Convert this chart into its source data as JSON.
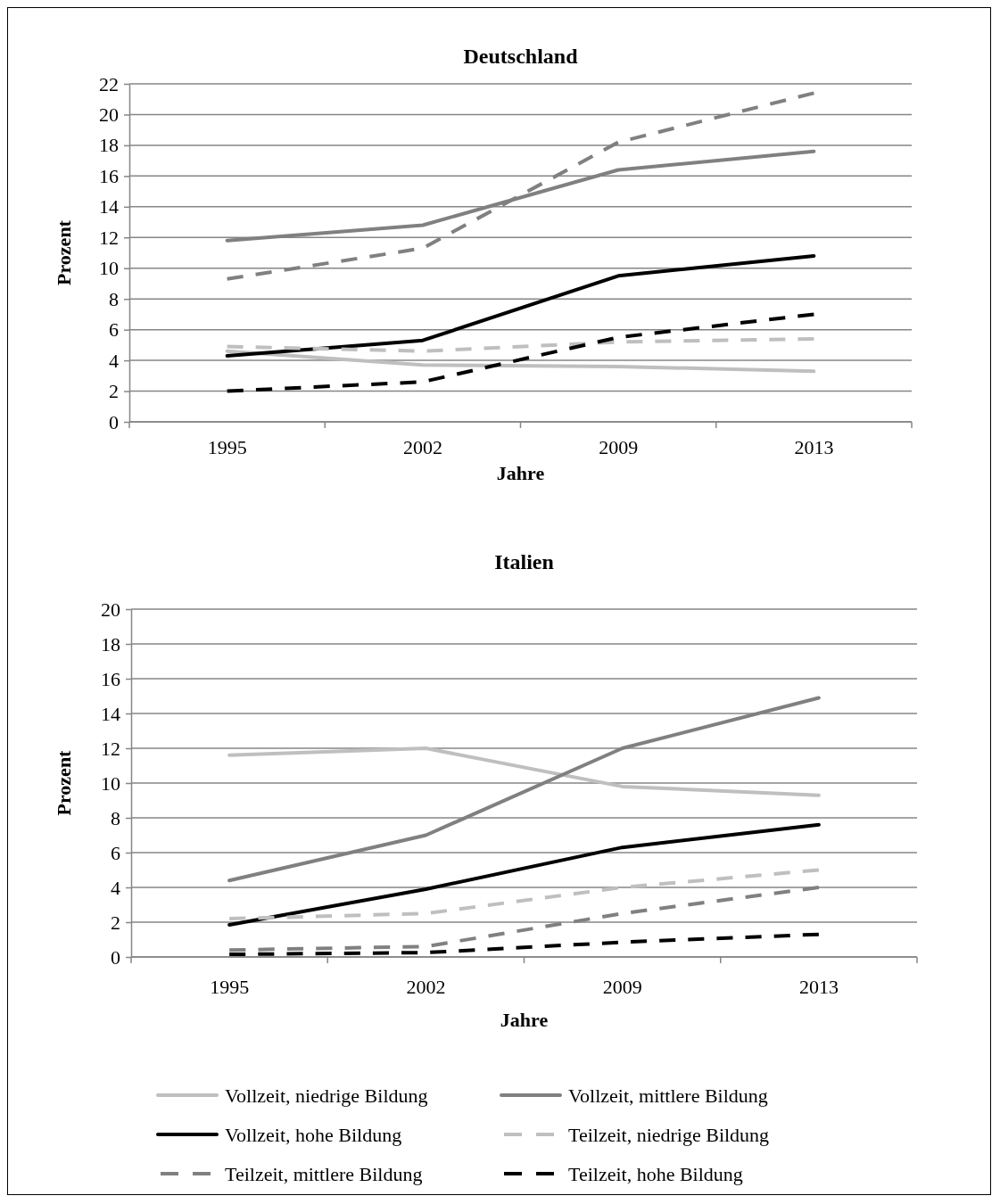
{
  "chart_data": [
    {
      "type": "line",
      "title": "Deutschland",
      "xlabel": "Jahre",
      "ylabel": "Prozent",
      "categories": [
        "1995",
        "2002",
        "2009",
        "2013"
      ],
      "ylim": [
        0,
        22
      ],
      "yticks": [
        0,
        2,
        4,
        6,
        8,
        10,
        12,
        14,
        16,
        18,
        20,
        22
      ],
      "grid": "y",
      "legend": false,
      "series": [
        {
          "color": "#bfbfbf",
          "line_style": "solid",
          "values": [
            4.6,
            3.7,
            3.6,
            3.3
          ]
        },
        {
          "color": "#808080",
          "line_style": "solid",
          "values": [
            11.8,
            12.8,
            16.4,
            17.6
          ]
        },
        {
          "color": "#000000",
          "line_style": "solid",
          "values": [
            4.3,
            5.3,
            9.5,
            10.8
          ]
        },
        {
          "color": "#bfbfbf",
          "line_style": "dashed",
          "values": [
            4.9,
            4.6,
            5.2,
            5.4
          ]
        },
        {
          "color": "#808080",
          "line_style": "dashed",
          "values": [
            9.3,
            11.3,
            18.2,
            21.4
          ]
        },
        {
          "color": "#000000",
          "line_style": "dashed",
          "values": [
            2.0,
            2.6,
            5.5,
            7.0
          ]
        }
      ]
    },
    {
      "type": "line",
      "title": "Italien",
      "xlabel": "Jahre",
      "ylabel": "Prozent",
      "categories": [
        "1995",
        "2002",
        "2009",
        "2013"
      ],
      "ylim": [
        0,
        20
      ],
      "yticks": [
        0,
        2,
        4,
        6,
        8,
        10,
        12,
        14,
        16,
        18,
        20
      ],
      "grid": "y",
      "legend": "bottom",
      "series": [
        {
          "name": "Vollzeit, niedrige Bildung",
          "color": "#bfbfbf",
          "line_style": "solid",
          "values": [
            11.6,
            12.0,
            9.8,
            9.3
          ]
        },
        {
          "name": "Vollzeit, mittlere Bildung",
          "color": "#808080",
          "line_style": "solid",
          "values": [
            4.4,
            7.0,
            12.0,
            14.9
          ]
        },
        {
          "name": "Vollzeit, hohe Bildung",
          "color": "#000000",
          "line_style": "solid",
          "values": [
            1.85,
            3.9,
            6.3,
            7.6
          ]
        },
        {
          "name": "Teilzeit, niedrige Bildung",
          "color": "#bfbfbf",
          "line_style": "dashed",
          "values": [
            2.2,
            2.5,
            4.0,
            5.0
          ]
        },
        {
          "name": "Teilzeit, mittlere Bildung",
          "color": "#808080",
          "line_style": "dashed",
          "values": [
            0.4,
            0.6,
            2.5,
            4.0
          ]
        },
        {
          "name": "Teilzeit, hohe Bildung",
          "color": "#000000",
          "line_style": "dashed",
          "values": [
            0.15,
            0.25,
            0.85,
            1.3
          ]
        }
      ]
    }
  ]
}
